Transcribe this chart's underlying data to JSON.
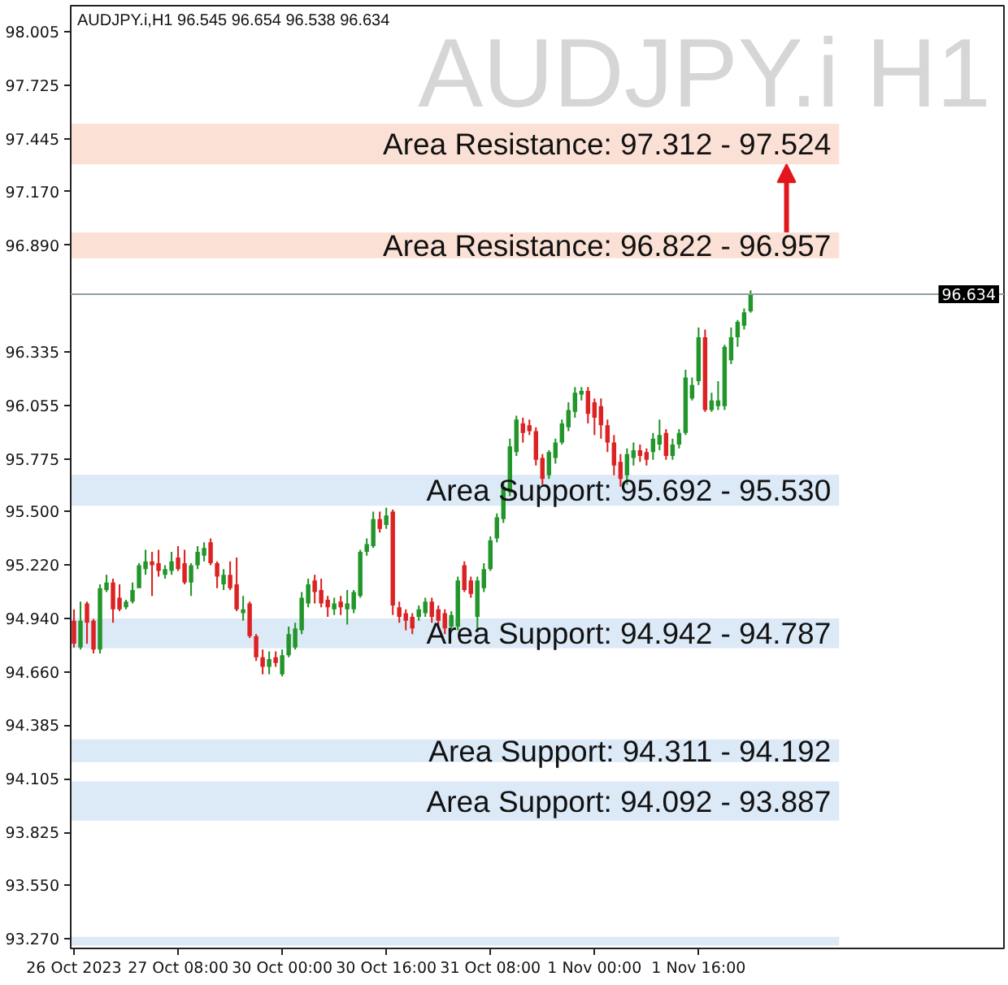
{
  "chart_data": {
    "type": "candlestick",
    "title": "AUDJPY.i H1",
    "subtitle": "AUDJPY.i,H1  96.545 96.654 96.538 96.634",
    "categories": [
      "26 Oct 2023",
      null,
      null,
      null,
      null,
      null,
      null,
      null,
      null,
      null,
      null,
      null,
      null,
      null,
      null,
      null,
      "27 Oct 08:00",
      null,
      null,
      null,
      null,
      null,
      null,
      null,
      null,
      null,
      null,
      null,
      null,
      null,
      null,
      null,
      "30 Oct 00:00",
      null,
      null,
      null,
      null,
      null,
      null,
      null,
      null,
      null,
      null,
      null,
      null,
      null,
      null,
      null,
      "30 Oct 16:00",
      null,
      null,
      null,
      null,
      null,
      null,
      null,
      null,
      null,
      null,
      null,
      null,
      null,
      null,
      null,
      "31 Oct 08:00",
      null,
      null,
      null,
      null,
      null,
      null,
      null,
      null,
      null,
      null,
      null,
      null,
      null,
      null,
      null,
      "1 Nov 00:00",
      null,
      null,
      null,
      null,
      null,
      null,
      null,
      null,
      null,
      null,
      null,
      null,
      null,
      null,
      null,
      "1 Nov 16:00",
      null,
      null,
      null,
      null,
      null,
      null,
      null,
      null
    ],
    "ohlc": [
      [
        94.93,
        94.99,
        94.79,
        94.81
      ],
      [
        94.79,
        95.03,
        94.78,
        94.93
      ],
      [
        95.02,
        95.03,
        94.81,
        94.92
      ],
      [
        94.93,
        94.94,
        94.76,
        94.78
      ],
      [
        94.78,
        95.12,
        94.76,
        95.1
      ],
      [
        95.09,
        95.17,
        95.08,
        95.13
      ],
      [
        95.13,
        95.15,
        94.92,
        94.99
      ],
      [
        95.05,
        95.12,
        94.98,
        94.99
      ],
      [
        95.0,
        95.04,
        94.99,
        95.03
      ],
      [
        95.03,
        95.13,
        95.02,
        95.09
      ],
      [
        95.1,
        95.23,
        95.1,
        95.22
      ],
      [
        95.2,
        95.3,
        95.17,
        95.24
      ],
      [
        95.24,
        95.29,
        95.06,
        95.22
      ],
      [
        95.23,
        95.3,
        95.16,
        95.19
      ],
      [
        95.17,
        95.22,
        95.15,
        95.2
      ],
      [
        95.19,
        95.29,
        95.17,
        95.24
      ],
      [
        95.26,
        95.32,
        95.19,
        95.2
      ],
      [
        95.23,
        95.3,
        95.12,
        95.13
      ],
      [
        95.13,
        95.23,
        95.06,
        95.22
      ],
      [
        95.22,
        95.32,
        95.2,
        95.29
      ],
      [
        95.27,
        95.34,
        95.24,
        95.31
      ],
      [
        95.34,
        95.36,
        95.22,
        95.23
      ],
      [
        95.23,
        95.24,
        95.1,
        95.16
      ],
      [
        95.12,
        95.2,
        95.09,
        95.17
      ],
      [
        95.17,
        95.24,
        95.09,
        95.1
      ],
      [
        95.12,
        95.26,
        94.98,
        94.99
      ],
      [
        94.97,
        95.06,
        94.93,
        94.99
      ],
      [
        95.02,
        95.03,
        94.84,
        94.85
      ],
      [
        94.85,
        94.86,
        94.72,
        94.74
      ],
      [
        94.74,
        94.78,
        94.65,
        94.69
      ],
      [
        94.69,
        94.77,
        94.65,
        94.73
      ],
      [
        94.74,
        94.77,
        94.69,
        94.71
      ],
      [
        94.65,
        94.78,
        94.64,
        94.75
      ],
      [
        94.75,
        94.9,
        94.74,
        94.86
      ],
      [
        94.79,
        94.92,
        94.78,
        94.89
      ],
      [
        94.88,
        95.08,
        94.86,
        95.05
      ],
      [
        95.02,
        95.15,
        95.0,
        95.12
      ],
      [
        95.14,
        95.17,
        95.02,
        95.08
      ],
      [
        95.09,
        95.15,
        95.0,
        95.02
      ],
      [
        95.04,
        95.06,
        94.95,
        95.0
      ],
      [
        94.99,
        95.05,
        94.96,
        95.02
      ],
      [
        95.03,
        95.06,
        94.96,
        95.0
      ],
      [
        94.99,
        95.09,
        94.91,
        95.02
      ],
      [
        94.99,
        95.09,
        94.97,
        95.08
      ],
      [
        95.06,
        95.3,
        95.05,
        95.29
      ],
      [
        95.29,
        95.36,
        95.27,
        95.33
      ],
      [
        95.32,
        95.5,
        95.31,
        95.46
      ],
      [
        95.46,
        95.5,
        95.39,
        95.41
      ],
      [
        95.43,
        95.52,
        95.41,
        95.48
      ],
      [
        95.5,
        95.51,
        94.96,
        95.01
      ],
      [
        95.0,
        95.03,
        94.92,
        94.95
      ],
      [
        94.97,
        94.99,
        94.88,
        94.93
      ],
      [
        94.95,
        94.97,
        94.86,
        94.89
      ],
      [
        94.95,
        95.01,
        94.93,
        94.99
      ],
      [
        94.97,
        95.05,
        94.95,
        95.03
      ],
      [
        95.03,
        95.05,
        94.92,
        94.95
      ],
      [
        94.99,
        95.01,
        94.9,
        94.93
      ],
      [
        94.97,
        94.99,
        94.86,
        94.89
      ],
      [
        94.9,
        94.98,
        94.88,
        94.96
      ],
      [
        94.9,
        95.16,
        94.88,
        95.14
      ],
      [
        95.22,
        95.24,
        95.08,
        95.09
      ],
      [
        95.14,
        95.16,
        95.05,
        95.07
      ],
      [
        94.95,
        95.16,
        94.87,
        95.14
      ],
      [
        95.1,
        95.23,
        95.08,
        95.2
      ],
      [
        95.2,
        95.37,
        95.19,
        95.35
      ],
      [
        95.36,
        95.49,
        95.34,
        95.47
      ],
      [
        95.46,
        95.65,
        95.44,
        95.63
      ],
      [
        95.6,
        95.88,
        95.58,
        95.84
      ],
      [
        95.81,
        96.0,
        95.79,
        95.98
      ],
      [
        95.96,
        95.99,
        95.86,
        95.91
      ],
      [
        95.95,
        95.98,
        95.9,
        95.92
      ],
      [
        95.92,
        95.94,
        95.74,
        95.77
      ],
      [
        95.78,
        95.8,
        95.64,
        95.67
      ],
      [
        95.69,
        95.82,
        95.67,
        95.81
      ],
      [
        95.78,
        95.88,
        95.75,
        95.86
      ],
      [
        95.86,
        95.98,
        95.85,
        95.96
      ],
      [
        95.94,
        96.07,
        95.92,
        96.03
      ],
      [
        96.02,
        96.15,
        95.99,
        96.12
      ],
      [
        96.11,
        96.15,
        96.08,
        96.13
      ],
      [
        96.13,
        96.15,
        95.96,
        96.01
      ],
      [
        96.07,
        96.09,
        95.9,
        95.99
      ],
      [
        96.05,
        96.09,
        95.88,
        95.95
      ],
      [
        95.95,
        95.98,
        95.81,
        95.86
      ],
      [
        95.86,
        95.9,
        95.69,
        95.74
      ],
      [
        95.76,
        95.8,
        95.63,
        95.67
      ],
      [
        95.69,
        95.83,
        95.64,
        95.8
      ],
      [
        95.78,
        95.86,
        95.74,
        95.82
      ],
      [
        95.82,
        95.85,
        95.76,
        95.79
      ],
      [
        95.81,
        95.83,
        95.74,
        95.77
      ],
      [
        95.81,
        95.91,
        95.77,
        95.88
      ],
      [
        95.85,
        95.98,
        95.82,
        95.9
      ],
      [
        95.91,
        95.93,
        95.77,
        95.79
      ],
      [
        95.79,
        95.88,
        95.77,
        95.85
      ],
      [
        95.85,
        95.93,
        95.83,
        95.91
      ],
      [
        95.91,
        96.24,
        95.9,
        96.2
      ],
      [
        96.09,
        96.2,
        96.08,
        96.16
      ],
      [
        96.18,
        96.46,
        96.16,
        96.41
      ],
      [
        96.41,
        96.45,
        96.02,
        96.03
      ],
      [
        96.03,
        96.12,
        96.02,
        96.08
      ],
      [
        96.05,
        96.18,
        96.03,
        96.08
      ],
      [
        96.05,
        96.37,
        96.03,
        96.36
      ],
      [
        96.29,
        96.46,
        96.27,
        96.41
      ],
      [
        96.41,
        96.5,
        96.36,
        96.49
      ],
      [
        96.47,
        96.56,
        96.45,
        96.54
      ],
      [
        96.545,
        96.654,
        96.538,
        96.634
      ]
    ],
    "colors": [
      "#dc2222",
      "#22962a",
      "#dc2222",
      "#dc2222",
      "#22962a",
      "#22962a",
      "#dc2222",
      "#dc2222",
      "#22962a",
      "#22962a",
      "#22962a",
      "#22962a",
      "#dc2222",
      "#dc2222",
      "#22962a",
      "#22962a",
      "#dc2222",
      "#dc2222",
      "#22962a",
      "#22962a",
      "#22962a",
      "#dc2222",
      "#dc2222",
      "#22962a",
      "#dc2222",
      "#dc2222",
      "#22962a",
      "#dc2222",
      "#dc2222",
      "#dc2222",
      "#22962a",
      "#dc2222",
      "#22962a",
      "#22962a",
      "#22962a",
      "#22962a",
      "#22962a",
      "#dc2222",
      "#dc2222",
      "#dc2222",
      "#22962a",
      "#dc2222",
      "#22962a",
      "#22962a",
      "#22962a",
      "#22962a",
      "#22962a",
      "#dc2222",
      "#22962a",
      "#dc2222",
      "#dc2222",
      "#dc2222",
      "#dc2222",
      "#22962a",
      "#22962a",
      "#dc2222",
      "#dc2222",
      "#dc2222",
      "#22962a",
      "#22962a",
      "#dc2222",
      "#dc2222",
      "#22962a",
      "#22962a",
      "#22962a",
      "#22962a",
      "#22962a",
      "#22962a",
      "#22962a",
      "#dc2222",
      "#dc2222",
      "#dc2222",
      "#dc2222",
      "#22962a",
      "#22962a",
      "#22962a",
      "#22962a",
      "#22962a",
      "#22962a",
      "#dc2222",
      "#dc2222",
      "#dc2222",
      "#dc2222",
      "#dc2222",
      "#dc2222",
      "#22962a",
      "#22962a",
      "#dc2222",
      "#dc2222",
      "#22962a",
      "#22962a",
      "#dc2222",
      "#22962a",
      "#22962a",
      "#22962a",
      "#22962a",
      "#22962a",
      "#dc2222",
      "#22962a",
      "#22962a",
      "#22962a",
      "#22962a",
      "#22962a",
      "#22962a",
      "#22962a"
    ],
    "ylim": [
      93.22,
      98.14
    ],
    "yticks": [
      {
        "value": 98.005,
        "label": "98.005"
      },
      {
        "value": 97.725,
        "label": "97.725"
      },
      {
        "value": 97.445,
        "label": "97.445"
      },
      {
        "value": 97.17,
        "label": "97.170"
      },
      {
        "value": 96.89,
        "label": "96.890"
      },
      {
        "value": 96.335,
        "label": "96.335"
      },
      {
        "value": 96.055,
        "label": "96.055"
      },
      {
        "value": 95.775,
        "label": "95.775"
      },
      {
        "value": 95.5,
        "label": "95.500"
      },
      {
        "value": 95.22,
        "label": "95.220"
      },
      {
        "value": 94.94,
        "label": "94.940"
      },
      {
        "value": 94.66,
        "label": "94.660"
      },
      {
        "value": 94.385,
        "label": "94.385"
      },
      {
        "value": 94.105,
        "label": "94.105"
      },
      {
        "value": 93.825,
        "label": "93.825"
      },
      {
        "value": 93.55,
        "label": "93.550"
      },
      {
        "value": 93.27,
        "label": "93.270"
      }
    ],
    "bands": [
      {
        "axis": "y",
        "from": 97.312,
        "to": 97.524,
        "label": "Area Resistance: 97.312 - 97.524",
        "color": "#fbe1d5"
      },
      {
        "axis": "y",
        "from": 96.822,
        "to": 96.957,
        "label": "Area Resistance: 96.822 - 96.957",
        "color": "#fbe1d5"
      },
      {
        "axis": "y",
        "from": 95.53,
        "to": 95.692,
        "label": "Area Support: 95.692 - 95.530",
        "color": "#dce9f7"
      },
      {
        "axis": "y",
        "from": 94.787,
        "to": 94.942,
        "label": "Area Support: 94.942 - 94.787",
        "color": "#dce9f7"
      },
      {
        "axis": "y",
        "from": 94.192,
        "to": 94.311,
        "label": "Area Support: 94.311 - 94.192",
        "color": "#dce9f7"
      },
      {
        "axis": "y",
        "from": 93.887,
        "to": 94.092,
        "label": "Area Support: 94.092 - 93.887",
        "color": "#dce9f7"
      },
      {
        "axis": "y",
        "from": 93.235,
        "to": 93.28,
        "color": "#dce9f7"
      }
    ],
    "ref_lines": [
      {
        "axis": "y",
        "value": 96.634,
        "label": "96.634",
        "color": "#8f9ea6"
      }
    ]
  }
}
